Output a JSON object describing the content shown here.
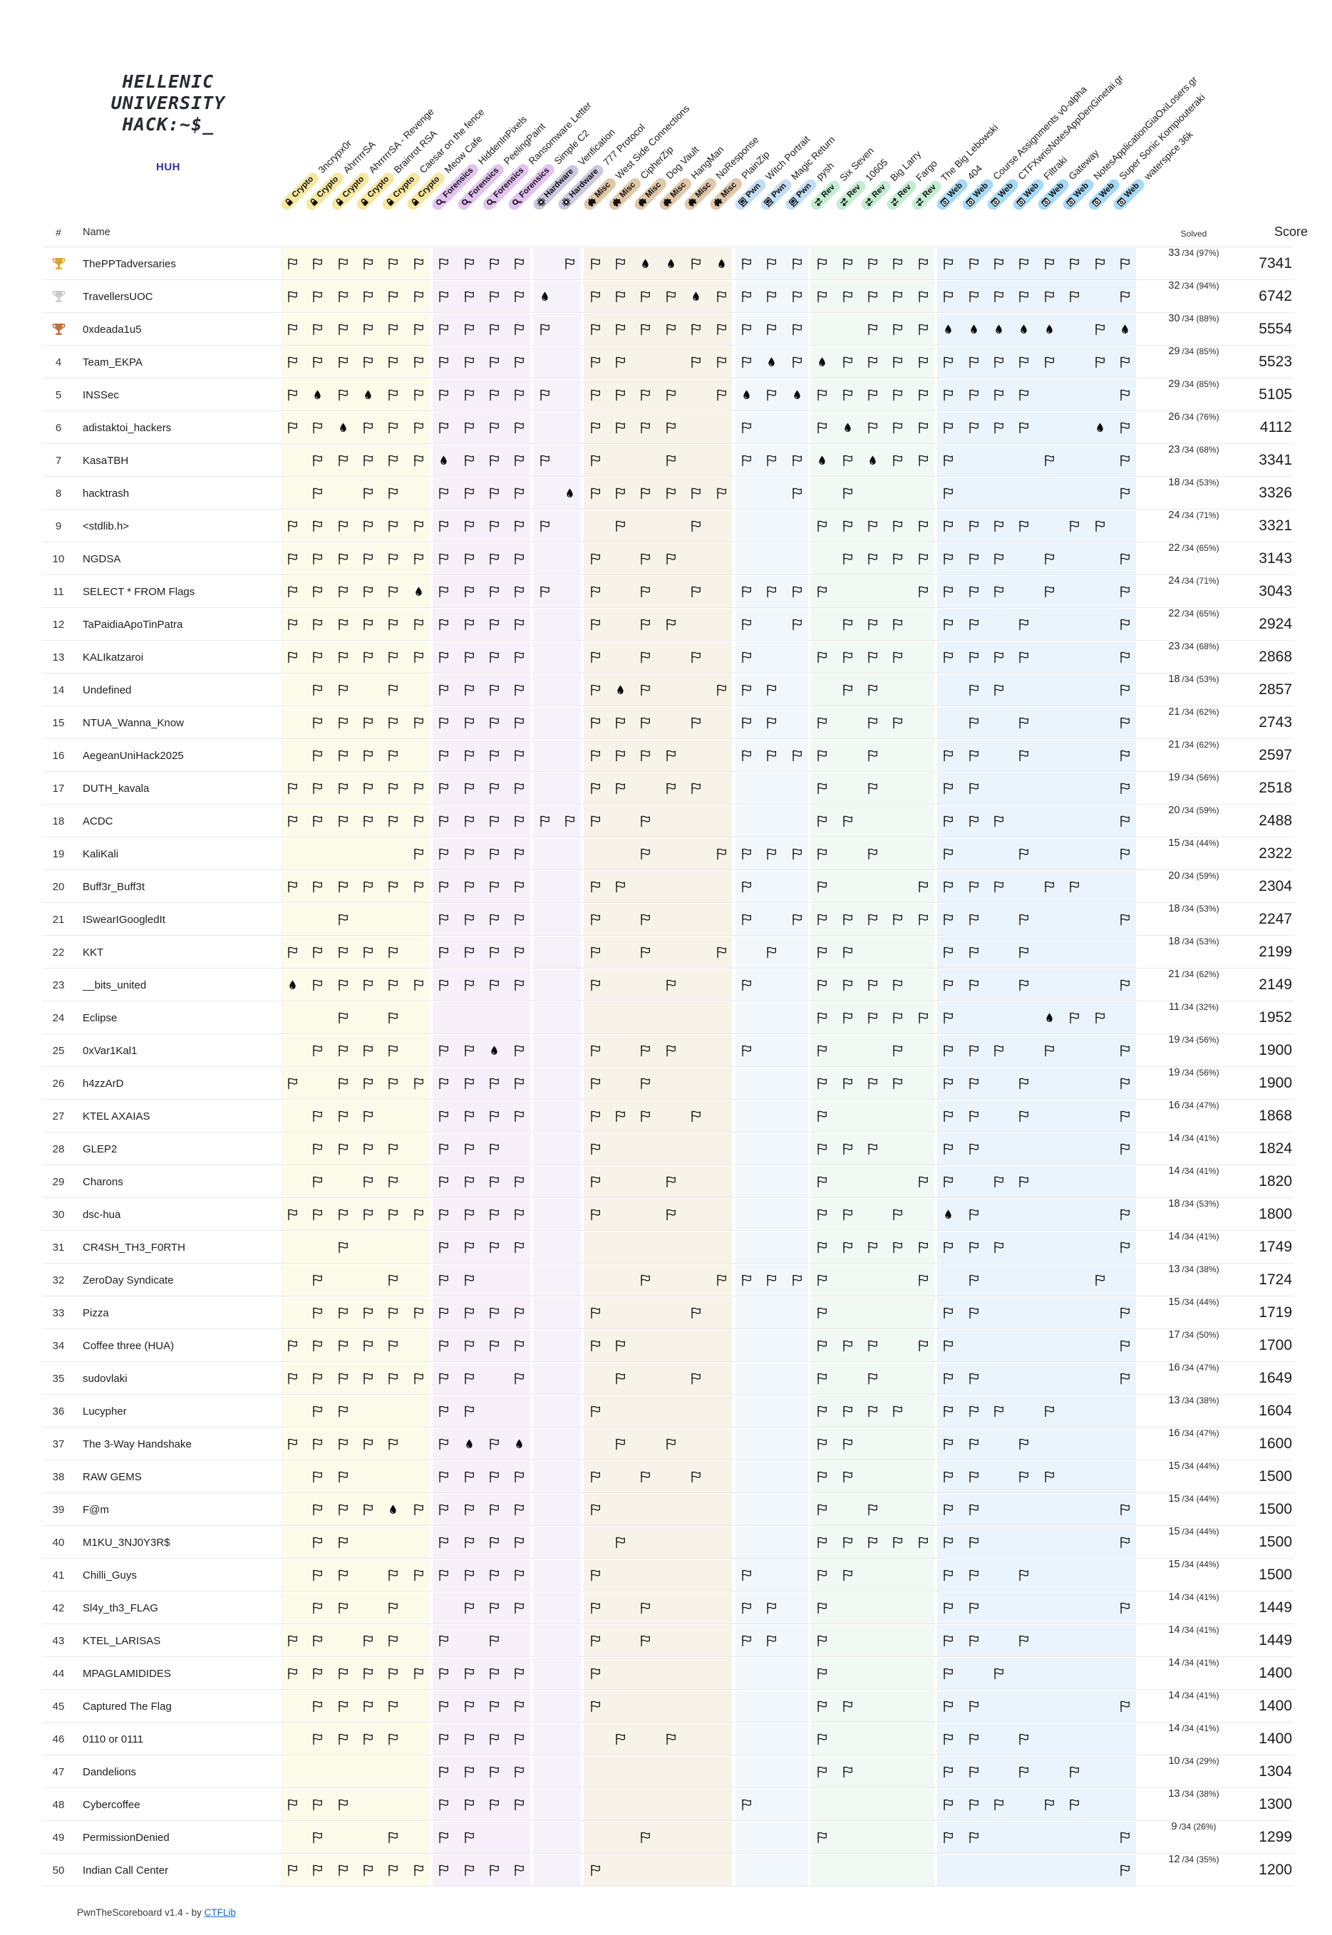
{
  "logo": {
    "line1": "HELLENIC",
    "line2": "UNIVERSITY",
    "line3": "HACK:~$_",
    "subtitle": "HUH"
  },
  "table": {
    "rank_header": "#",
    "name_header": "Name",
    "solved_header": "Solved",
    "score_header": "Score",
    "solved_total": "34"
  },
  "categories": [
    {
      "name": "Crypto",
      "icon": "lock-icon",
      "pill_color": "#F6E7A0",
      "tint": "#FCFBE9"
    },
    {
      "name": "Forensics",
      "icon": "magnifier-icon",
      "pill_color": "#E3C2F0",
      "tint": "#F7F0FA"
    },
    {
      "name": "Hardware",
      "icon": "chip-icon",
      "pill_color": "#CBC7DD",
      "tint": "#F5F3F9"
    },
    {
      "name": "Misc",
      "icon": "puzzle-icon",
      "pill_color": "#DFC7A8",
      "tint": "#F8F3E9"
    },
    {
      "name": "Pwn",
      "icon": "terminal-icon",
      "pill_color": "#C3DDF3",
      "tint": "#F2F7FC"
    },
    {
      "name": "Rev",
      "icon": "swap-arrows-icon",
      "pill_color": "#C3EDD1",
      "tint": "#F0F9F3"
    },
    {
      "name": "Web",
      "icon": "browser-icon",
      "pill_color": "#A7D9F6",
      "tint": "#EAF4FC"
    }
  ],
  "challenges": [
    {
      "label": "3ncrypx0r",
      "category": "Crypto"
    },
    {
      "label": "AhrrrrrSA",
      "category": "Crypto"
    },
    {
      "label": "AhrrrrrSA - Revenge",
      "category": "Crypto"
    },
    {
      "label": "Brainrot RSA",
      "category": "Crypto"
    },
    {
      "label": "Caesar on the fence",
      "category": "Crypto"
    },
    {
      "label": "Meow Cafe",
      "category": "Crypto"
    },
    {
      "label": "HiddenInPixels",
      "category": "Forensics"
    },
    {
      "label": "PeelingPaint",
      "category": "Forensics"
    },
    {
      "label": "Ransomware Letter",
      "category": "Forensics"
    },
    {
      "label": "Simple C2",
      "category": "Forensics"
    },
    {
      "label": "Verification",
      "category": "Hardware"
    },
    {
      "label": "777 Protocol",
      "category": "Hardware"
    },
    {
      "label": "West Side Connections",
      "category": "Misc"
    },
    {
      "label": "CipherZip",
      "category": "Misc"
    },
    {
      "label": "Dog Vault",
      "category": "Misc"
    },
    {
      "label": "HangMan",
      "category": "Misc"
    },
    {
      "label": "NoResponse",
      "category": "Misc"
    },
    {
      "label": "PlainZip",
      "category": "Misc"
    },
    {
      "label": "Witch Portrait",
      "category": "Pwn"
    },
    {
      "label": "Magic Return",
      "category": "Pwn"
    },
    {
      "label": "pysh",
      "category": "Pwn"
    },
    {
      "label": "Six Seven",
      "category": "Rev"
    },
    {
      "label": "10605",
      "category": "Rev"
    },
    {
      "label": "Big Larry",
      "category": "Rev"
    },
    {
      "label": "Fargo",
      "category": "Rev"
    },
    {
      "label": "The Big Lebowski",
      "category": "Rev"
    },
    {
      "label": "404",
      "category": "Web"
    },
    {
      "label": "Course Assignments v0-alpha",
      "category": "Web"
    },
    {
      "label": "CTFXwrisNotesAppDenGinetai.gr",
      "category": "Web"
    },
    {
      "label": "Filtraki",
      "category": "Web"
    },
    {
      "label": "Gateway",
      "category": "Web"
    },
    {
      "label": "NotesApplicationGiaOxiLosers.gr",
      "category": "Web"
    },
    {
      "label": "Super Sonic Kompiouteraki",
      "category": "Web"
    },
    {
      "label": "waterspice 36k",
      "category": "Web"
    }
  ],
  "legend": {
    "flag_icon": "flag-icon",
    "first_blood_icon": "blood-drop-icon",
    "trophy_colors": {
      "gold": "#D9A62E",
      "silver": "#C7CBD1",
      "bronze": "#C0713A"
    }
  },
  "teams": [
    {
      "rank": "1",
      "trophy": "gold",
      "name": "ThePPTadversaries",
      "solved": "33",
      "solved_rest": "/34 (97%)",
      "score": "7341",
      "cells": "FFFFFFFFFF.FFFBBFBFFFFFFFFFFFFFFFF"
    },
    {
      "rank": "2",
      "trophy": "silver",
      "name": "TravellersUOC",
      "solved": "32",
      "solved_rest": "/34 (94%)",
      "score": "6742",
      "cells": "FFFFFFFFFFB.FFFFBFFFFFFFFFFFFFFF.F"
    },
    {
      "rank": "3",
      "trophy": "bronze",
      "name": "0xdeada1u5",
      "solved": "30",
      "solved_rest": "/34 (88%)",
      "score": "5554",
      "cells": "FFFFFFFFFFF.FFFFFFFFF..FFFBBBBB.FB"
    },
    {
      "rank": "4",
      "trophy": null,
      "name": "Team_EKPA",
      "solved": "29",
      "solved_rest": "/34 (85%)",
      "score": "5523",
      "cells": "FFFFFFFFFF..FF..FFFBFBFFFFFFFFF.FF"
    },
    {
      "rank": "5",
      "trophy": null,
      "name": "INSSec",
      "solved": "29",
      "solved_rest": "/34 (85%)",
      "score": "5105",
      "cells": "FBFBFFFFFFF.FFFF.FBFBFFFFFFFFF...F"
    },
    {
      "rank": "6",
      "trophy": null,
      "name": "adistaktoi_hackers",
      "solved": "26",
      "solved_rest": "/34 (76%)",
      "score": "4112",
      "cells": "FFBFFFFFFF..FFFF..F..FBFFFFFFF..BF"
    },
    {
      "rank": "7",
      "trophy": null,
      "name": "KasaTBH",
      "solved": "23",
      "solved_rest": "/34 (68%)",
      "score": "3341",
      "cells": ".FFFFFBFFFF.F..F..FFFBFBFFF...F..F"
    },
    {
      "rank": "8",
      "trophy": null,
      "name": "hacktrash",
      "solved": "18",
      "solved_rest": "/34 (53%)",
      "score": "3326",
      "cells": ".F.FF.FFFF.BFFFFFF..F.F...F......F"
    },
    {
      "rank": "9",
      "trophy": null,
      "name": "<stdlib.h>",
      "solved": "24",
      "solved_rest": "/34 (71%)",
      "score": "3321",
      "cells": "FFFFFFFFFFF..F..F....FFFFFFFFF.FF."
    },
    {
      "rank": "10",
      "trophy": null,
      "name": "NGDSA",
      "solved": "22",
      "solved_rest": "/34 (65%)",
      "score": "3143",
      "cells": "FFFFFFFFFF..F.FF......FFFFFFF.F..F"
    },
    {
      "rank": "11",
      "trophy": null,
      "name": "SELECT * FROM Flags",
      "solved": "24",
      "solved_rest": "/34 (71%)",
      "score": "3043",
      "cells": "FFFFFBFFFFF.F.F.F.FFFF...FFFF.F..F"
    },
    {
      "rank": "12",
      "trophy": null,
      "name": "TaPaidiaApoTinPatra",
      "solved": "22",
      "solved_rest": "/34 (65%)",
      "score": "2924",
      "cells": "FFFFFFFFFF..F.FF..F.F.FFF.FF.F...F"
    },
    {
      "rank": "13",
      "trophy": null,
      "name": "KALIkatzaroi",
      "solved": "23",
      "solved_rest": "/34 (68%)",
      "score": "2868",
      "cells": "FFFFFFFFFF..F.F.F.F..FFFF.FFFF...F"
    },
    {
      "rank": "14",
      "trophy": null,
      "name": "Undefined",
      "solved": "18",
      "solved_rest": "/34 (53%)",
      "score": "2857",
      "cells": ".FF.F.FFFF..FBF..FFF..FF...FF....F"
    },
    {
      "rank": "15",
      "trophy": null,
      "name": "NTUA_Wanna_Know",
      "solved": "21",
      "solved_rest": "/34 (62%)",
      "score": "2743",
      "cells": ".FFFFFFFFF..FFF.F.FF.F.FF..F.F...F"
    },
    {
      "rank": "16",
      "trophy": null,
      "name": "AegeanUniHack2025",
      "solved": "21",
      "solved_rest": "/34 (62%)",
      "score": "2597",
      "cells": ".FFFF.FFFF..FFFF..FFFF.F..FF.F...F"
    },
    {
      "rank": "17",
      "trophy": null,
      "name": "DUTH_kavala",
      "solved": "19",
      "solved_rest": "/34 (56%)",
      "score": "2518",
      "cells": "FFFFFFFFFF..FF.FF....F.F..FF.....F"
    },
    {
      "rank": "18",
      "trophy": null,
      "name": "ACDC",
      "solved": "20",
      "solved_rest": "/34 (59%)",
      "score": "2488",
      "cells": "FFFFFFFFFFFFF.F......FF...FFF....F"
    },
    {
      "rank": "19",
      "trophy": null,
      "name": "KaliKali",
      "solved": "15",
      "solved_rest": "/34 (44%)",
      "score": "2322",
      "cells": ".....FFFFF....F..FFFFF.F..F..F...F"
    },
    {
      "rank": "20",
      "trophy": null,
      "name": "Buff3r_Buff3t",
      "solved": "20",
      "solved_rest": "/34 (59%)",
      "score": "2304",
      "cells": "FFFFFFFFFF..FF....F..F...FFFF.FF.."
    },
    {
      "rank": "21",
      "trophy": null,
      "name": "ISwearIGoogledIt",
      "solved": "18",
      "solved_rest": "/34 (53%)",
      "score": "2247",
      "cells": "..F...FFFF..F.F...F.FFFFFFFF.F...F"
    },
    {
      "rank": "22",
      "trophy": null,
      "name": "KKT",
      "solved": "18",
      "solved_rest": "/34 (53%)",
      "score": "2199",
      "cells": "FFFFF.FFFF..F.F..F.F.FF...FF.F...."
    },
    {
      "rank": "23",
      "trophy": null,
      "name": "__bits_united",
      "solved": "21",
      "solved_rest": "/34 (62%)",
      "score": "2149",
      "cells": "BFFFFFFFFF..F..F..F..FFFF.FF.F...F"
    },
    {
      "rank": "24",
      "trophy": null,
      "name": "Eclipse",
      "solved": "11",
      "solved_rest": "/34 (32%)",
      "score": "1952",
      "cells": "..F.F................FFFFFF...BFF"
    },
    {
      "rank": "25",
      "trophy": null,
      "name": "0xVar1Kal1",
      "solved": "19",
      "solved_rest": "/34 (56%)",
      "score": "1900",
      "cells": ".FFFF.FFBF..F.FF..F..F..F.FFF.F..F"
    },
    {
      "rank": "26",
      "trophy": null,
      "name": "h4zzArD",
      "solved": "19",
      "solved_rest": "/34 (56%)",
      "score": "1900",
      "cells": "F.FFFFFFFF..F.F......FFFF.FF.F...F"
    },
    {
      "rank": "27",
      "trophy": null,
      "name": "KTEL AXAIAS",
      "solved": "16",
      "solved_rest": "/34 (47%)",
      "score": "1868",
      "cells": ".FFF..FFFF..FFF.F....F....FF.F...F"
    },
    {
      "rank": "28",
      "trophy": null,
      "name": "GLEP2",
      "solved": "14",
      "solved_rest": "/34 (41%)",
      "score": "1824",
      "cells": ".FFFF.FFF...F........FFF..FF.....F"
    },
    {
      "rank": "29",
      "trophy": null,
      "name": "Charons",
      "solved": "14",
      "solved_rest": "/34 (41%)",
      "score": "1820",
      "cells": ".F.FF.FFFF..F..F.....F...FF.FF..."
    },
    {
      "rank": "30",
      "trophy": null,
      "name": "dsc-hua",
      "solved": "18",
      "solved_rest": "/34 (53%)",
      "score": "1800",
      "cells": "FFFFFFFFFF..F..F.....FF.F.BF.....F"
    },
    {
      "rank": "31",
      "trophy": null,
      "name": "CR4SH_TH3_F0RTH",
      "solved": "14",
      "solved_rest": "/34 (41%)",
      "score": "1749",
      "cells": "..F...FFFF...........FFFFFFFF....F"
    },
    {
      "rank": "32",
      "trophy": null,
      "name": "ZeroDay Syndicate",
      "solved": "13",
      "solved_rest": "/34 (38%)",
      "score": "1724",
      "cells": ".F..F.FF......F..FFFFF...F.F....F"
    },
    {
      "rank": "33",
      "trophy": null,
      "name": "Pizza",
      "solved": "15",
      "solved_rest": "/34 (44%)",
      "score": "1719",
      "cells": ".FFFFFFFFF..F...F....F....FF.....F"
    },
    {
      "rank": "34",
      "trophy": null,
      "name": "Coffee three (HUA)",
      "solved": "17",
      "solved_rest": "/34 (50%)",
      "score": "1700",
      "cells": "FFFFF.FFFF..FF.......FFF.FF......F"
    },
    {
      "rank": "35",
      "trophy": null,
      "name": "sudovlaki",
      "solved": "16",
      "solved_rest": "/34 (47%)",
      "score": "1649",
      "cells": "FFFFFFFF.F...F..F....F.F..FF.....F"
    },
    {
      "rank": "36",
      "trophy": null,
      "name": "Lucypher",
      "solved": "13",
      "solved_rest": "/34 (38%)",
      "score": "1604",
      "cells": ".FF...FF....F........FFFF.FFF.F..."
    },
    {
      "rank": "37",
      "trophy": null,
      "name": "The 3-Way Handshake",
      "solved": "16",
      "solved_rest": "/34 (47%)",
      "score": "1600",
      "cells": "FFFFF.FBFB...F.F.....FF...FF.F...."
    },
    {
      "rank": "38",
      "trophy": null,
      "name": "RAW GEMS",
      "solved": "15",
      "solved_rest": "/34 (44%)",
      "score": "1500",
      "cells": ".FF...FFFF..F.F.F....FF...FF.FF..."
    },
    {
      "rank": "39",
      "trophy": null,
      "name": "F@m",
      "solved": "15",
      "solved_rest": "/34 (44%)",
      "score": "1500",
      "cells": ".FFFBFFFFF..F........F.F..FF.....F"
    },
    {
      "rank": "40",
      "trophy": null,
      "name": "M1KU_3NJ0Y3R$",
      "solved": "15",
      "solved_rest": "/34 (44%)",
      "score": "1500",
      "cells": ".FF...FFFF...F.......FFFFFFF.....F"
    },
    {
      "rank": "41",
      "trophy": null,
      "name": "Chilli_Guys",
      "solved": "15",
      "solved_rest": "/34 (44%)",
      "score": "1500",
      "cells": ".FF.FFFFFF..F.....F..FF...FF.F...."
    },
    {
      "rank": "42",
      "trophy": null,
      "name": "Sl4y_th3_FLAG",
      "solved": "14",
      "solved_rest": "/34 (41%)",
      "score": "1449",
      "cells": ".FF.F..FFF..F.F...FF.F....FF.....F"
    },
    {
      "rank": "43",
      "trophy": null,
      "name": "KTEL_LARISAS",
      "solved": "14",
      "solved_rest": "/34 (41%)",
      "score": "1449",
      "cells": "FF.FF.F.F...F.F...FF.F....FF.F...."
    },
    {
      "rank": "44",
      "trophy": null,
      "name": "MPAGLAMIDIDES",
      "solved": "14",
      "solved_rest": "/34 (41%)",
      "score": "1400",
      "cells": "FFFFFFFFFF..F........F....F.F....."
    },
    {
      "rank": "45",
      "trophy": null,
      "name": "Captured The Flag",
      "solved": "14",
      "solved_rest": "/34 (41%)",
      "score": "1400",
      "cells": ".FFFF.FFFF..F........FF...FF.....F"
    },
    {
      "rank": "46",
      "trophy": null,
      "name": "0110 or 0111",
      "solved": "14",
      "solved_rest": "/34 (41%)",
      "score": "1400",
      "cells": ".FFFF.FFFF...F.F.....F....FF.F...."
    },
    {
      "rank": "47",
      "trophy": null,
      "name": "Dandelions",
      "solved": "10",
      "solved_rest": "/34 (29%)",
      "score": "1304",
      "cells": "......FFFF...........FF...FF.F.F.."
    },
    {
      "rank": "48",
      "trophy": null,
      "name": "Cybercoffee",
      "solved": "13",
      "solved_rest": "/34 (38%)",
      "score": "1300",
      "cells": "FFF...FFFF........F.......FFF.FF.."
    },
    {
      "rank": "49",
      "trophy": null,
      "name": "PermissionDenied",
      "solved": "9",
      "solved_rest": "/34 (26%)",
      "score": "1299",
      "cells": ".F..F.FF......F......F....FF.....F"
    },
    {
      "rank": "50",
      "trophy": null,
      "name": "Indian Call Center",
      "solved": "12",
      "solved_rest": "/34 (35%)",
      "score": "1200",
      "cells": "FFFFFFFFFF..F....................F"
    }
  ],
  "footer": {
    "text": "PwnTheScoreboard v1.4 - by ",
    "link_label": "CTFLib"
  }
}
